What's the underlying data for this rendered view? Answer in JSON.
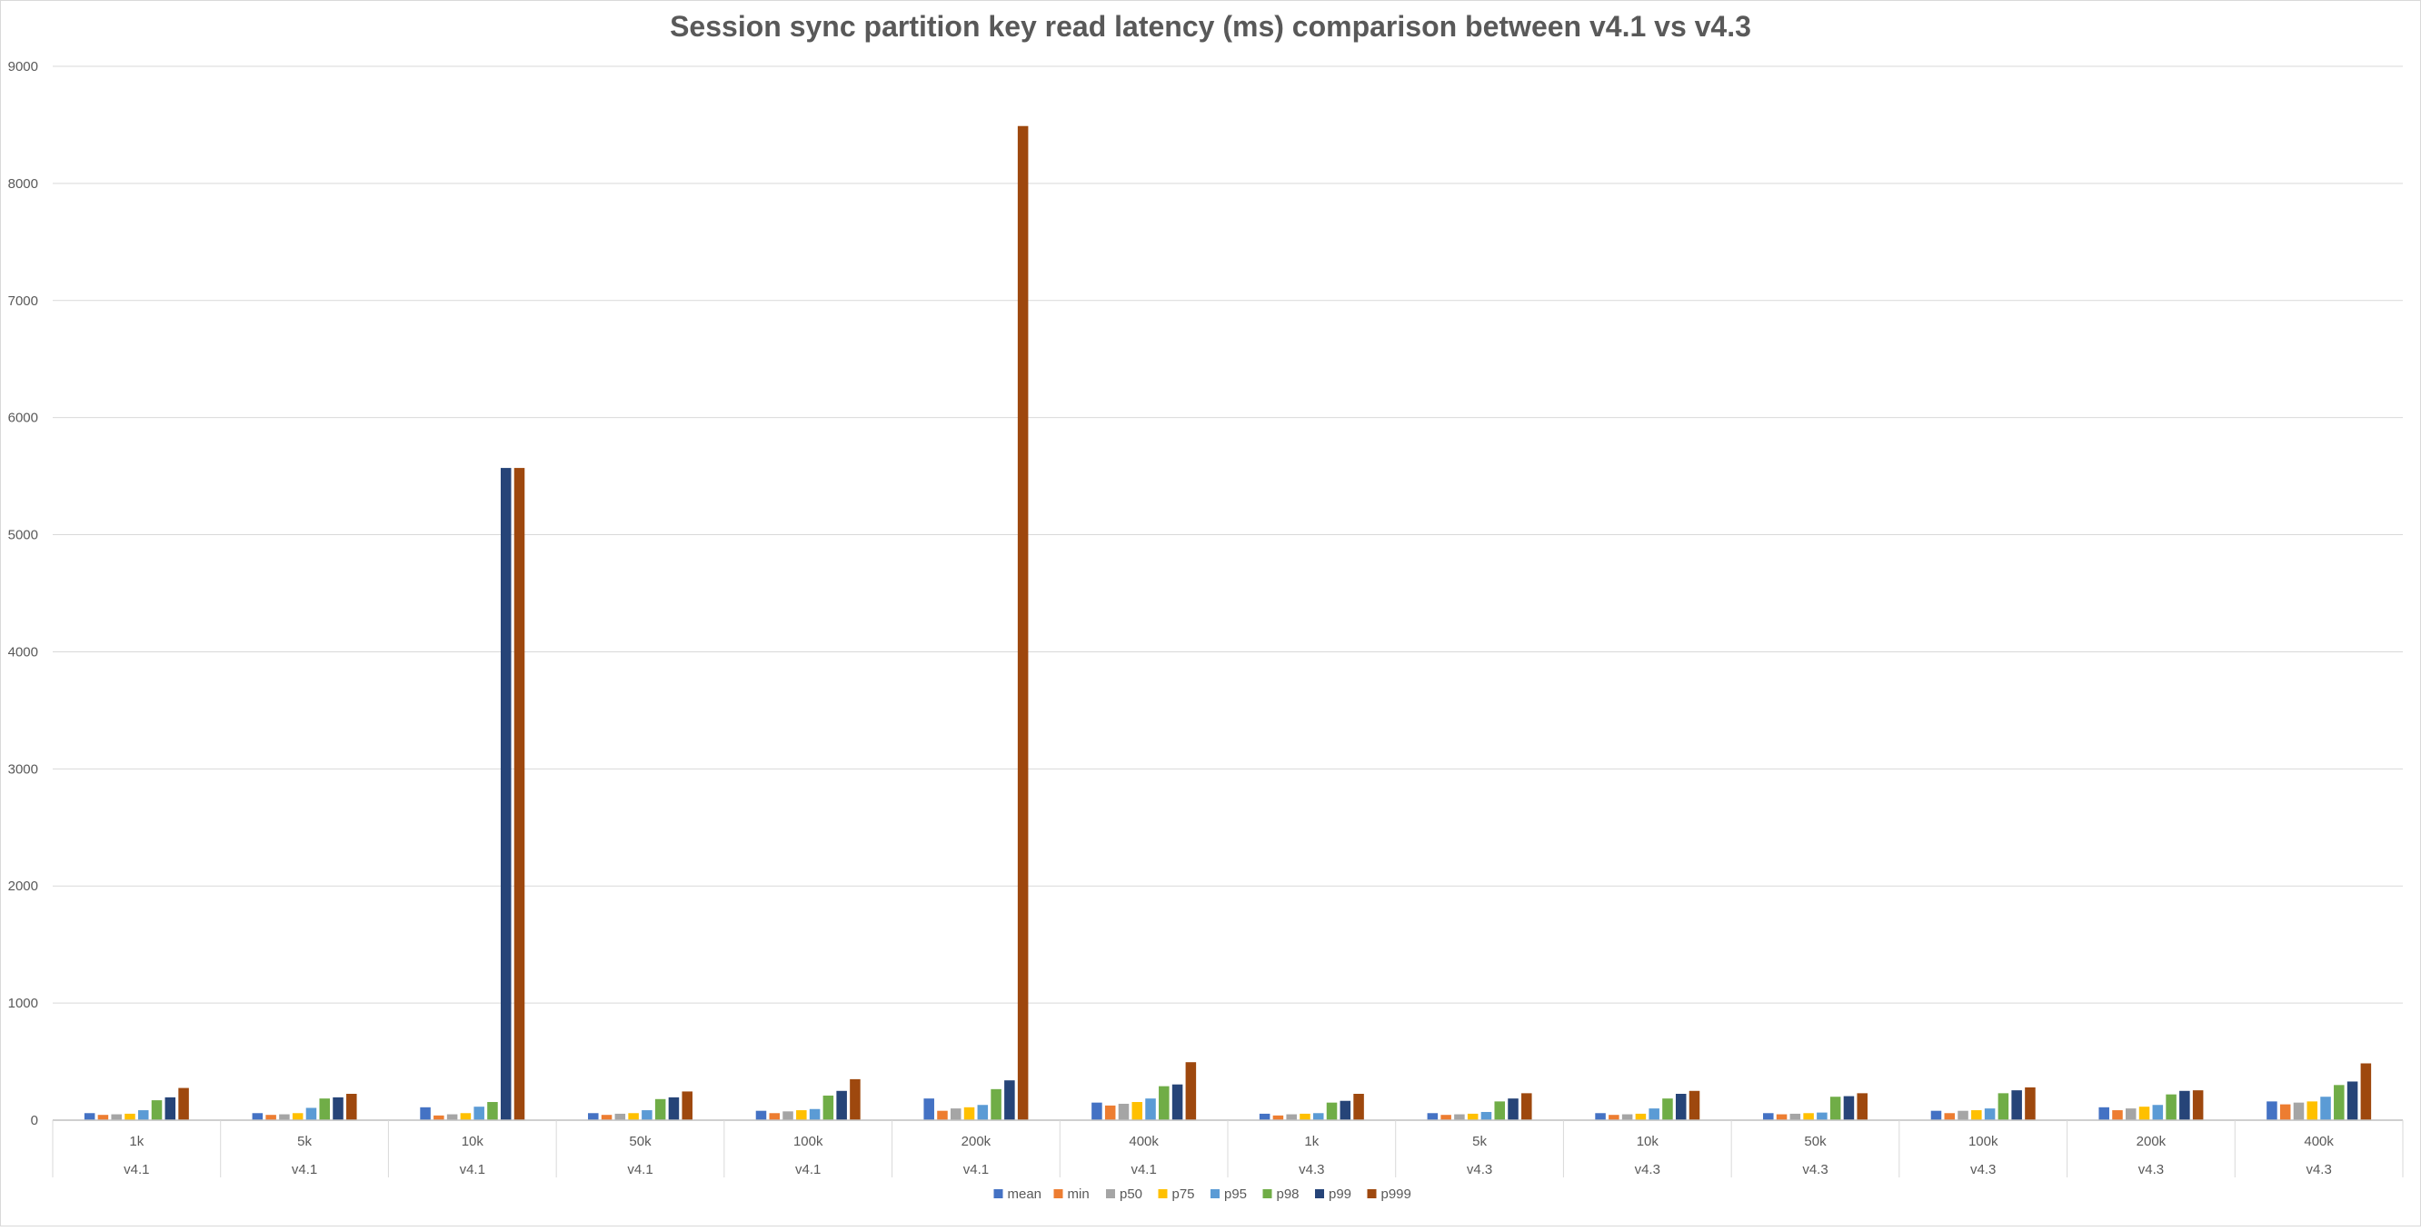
{
  "chart_data": {
    "type": "bar",
    "title": "Session sync partition key read latency (ms) comparison between v4.1 vs v4.3",
    "xlabel": "",
    "ylabel": "",
    "ylim": [
      0,
      9000
    ],
    "yticks": [
      0,
      1000,
      2000,
      3000,
      4000,
      5000,
      6000,
      7000,
      8000,
      9000
    ],
    "grid": true,
    "legend_position": "bottom",
    "categories": [
      {
        "label": "1k",
        "group": "v4.1"
      },
      {
        "label": "5k",
        "group": "v4.1"
      },
      {
        "label": "10k",
        "group": "v4.1"
      },
      {
        "label": "50k",
        "group": "v4.1"
      },
      {
        "label": "100k",
        "group": "v4.1"
      },
      {
        "label": "200k",
        "group": "v4.1"
      },
      {
        "label": "400k",
        "group": "v4.1"
      },
      {
        "label": "1k",
        "group": "v4.3"
      },
      {
        "label": "5k",
        "group": "v4.3"
      },
      {
        "label": "10k",
        "group": "v4.3"
      },
      {
        "label": "50k",
        "group": "v4.3"
      },
      {
        "label": "100k",
        "group": "v4.3"
      },
      {
        "label": "200k",
        "group": "v4.3"
      },
      {
        "label": "400k",
        "group": "v4.3"
      }
    ],
    "series": [
      {
        "name": "mean",
        "color": "#4472C4",
        "values": [
          60,
          60,
          110,
          60,
          80,
          185,
          150,
          55,
          60,
          60,
          60,
          80,
          110,
          160
        ]
      },
      {
        "name": "min",
        "color": "#ED7D31",
        "values": [
          45,
          45,
          40,
          45,
          60,
          80,
          125,
          40,
          45,
          45,
          50,
          60,
          85,
          135
        ]
      },
      {
        "name": "p50",
        "color": "#A5A5A5",
        "values": [
          50,
          50,
          50,
          55,
          75,
          100,
          140,
          50,
          50,
          50,
          55,
          80,
          100,
          150
        ]
      },
      {
        "name": "p75",
        "color": "#FFC000",
        "values": [
          55,
          60,
          60,
          60,
          85,
          110,
          155,
          55,
          55,
          55,
          60,
          85,
          115,
          160
        ]
      },
      {
        "name": "p95",
        "color": "#5B9BD5",
        "values": [
          85,
          105,
          115,
          85,
          95,
          130,
          185,
          60,
          70,
          100,
          65,
          100,
          130,
          200
        ]
      },
      {
        "name": "p98",
        "color": "#70AD47",
        "values": [
          170,
          185,
          155,
          180,
          210,
          265,
          290,
          150,
          160,
          185,
          200,
          230,
          220,
          300
        ]
      },
      {
        "name": "p99",
        "color": "#264478",
        "values": [
          195,
          195,
          5570,
          195,
          250,
          340,
          305,
          165,
          185,
          225,
          205,
          255,
          250,
          330
        ]
      },
      {
        "name": "p999",
        "color": "#9E480E",
        "values": [
          275,
          225,
          5570,
          245,
          350,
          8490,
          495,
          225,
          230,
          250,
          230,
          280,
          255,
          485
        ]
      }
    ]
  }
}
